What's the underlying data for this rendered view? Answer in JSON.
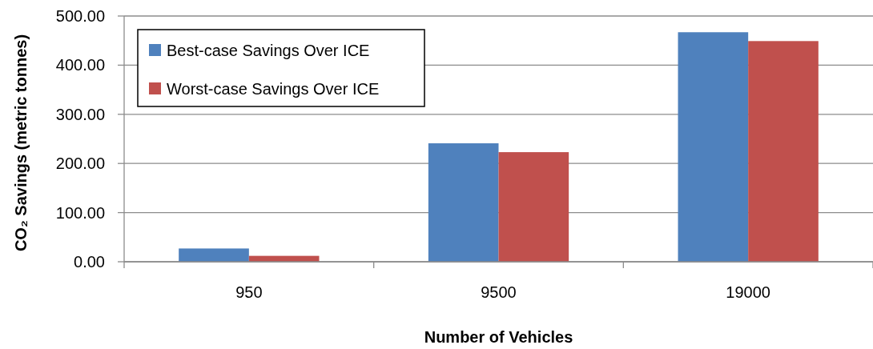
{
  "chart_data": {
    "type": "bar",
    "xlabel": "Number of Vehicles",
    "ylabel": "CO₂ Savings (metric tonnes)",
    "categories": [
      "950",
      "9500",
      "19000"
    ],
    "series": [
      {
        "name": "Best-case Savings Over ICE",
        "color": "#4f81bd",
        "values": [
          27,
          241,
          467
        ]
      },
      {
        "name": "Worst-case Savings Over ICE",
        "color": "#c0504d",
        "values": [
          12,
          223,
          449
        ]
      }
    ],
    "ylim": [
      0,
      500
    ],
    "yticks": [
      {
        "value": 0,
        "label": "0.00"
      },
      {
        "value": 100,
        "label": "100.00"
      },
      {
        "value": 200,
        "label": "200.00"
      },
      {
        "value": 300,
        "label": "300.00"
      },
      {
        "value": 400,
        "label": "400.00"
      },
      {
        "value": 500,
        "label": "500.00"
      }
    ],
    "grid": "y",
    "legend": "top left"
  }
}
